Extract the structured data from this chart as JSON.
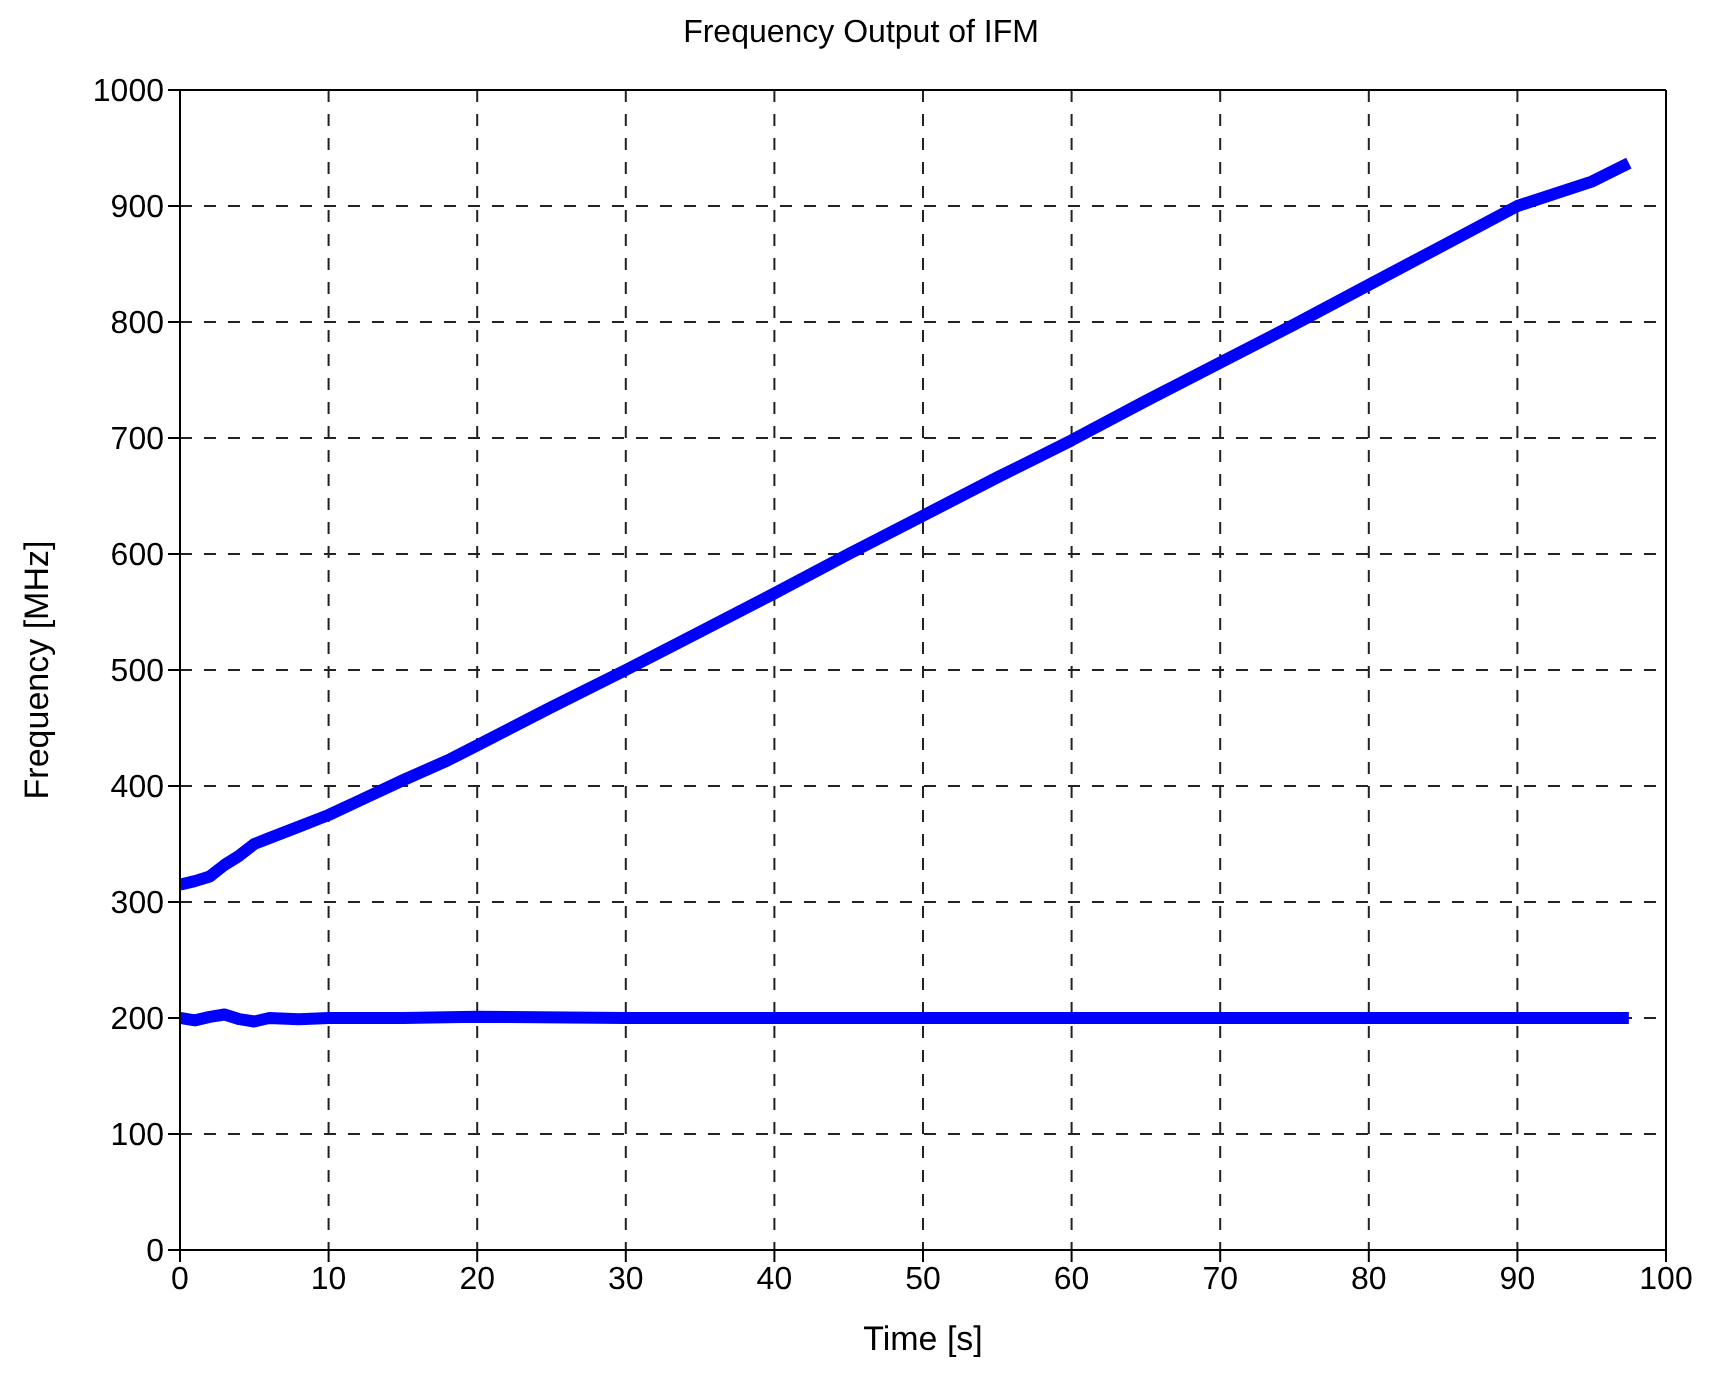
{
  "chart_data": {
    "type": "line",
    "title": "Frequency Output of IFM",
    "xlabel": "Time [s]",
    "ylabel": "Frequency [MHz]",
    "xlim": [
      0,
      100
    ],
    "ylim": [
      0,
      1000
    ],
    "xticks": [
      0,
      10,
      20,
      30,
      40,
      50,
      60,
      70,
      80,
      90,
      100
    ],
    "yticks": [
      0,
      100,
      200,
      300,
      400,
      500,
      600,
      700,
      800,
      900,
      1000
    ],
    "grid": true,
    "line_style": "solid",
    "series": [
      {
        "color": "#0000ff",
        "x": [
          0,
          1,
          2,
          3,
          4,
          5,
          6,
          8,
          10,
          12,
          15,
          18,
          20,
          25,
          30,
          35,
          40,
          45,
          50,
          55,
          60,
          65,
          70,
          75,
          80,
          85,
          90,
          95,
          97.5
        ],
        "values": [
          315,
          318,
          322,
          332,
          340,
          350,
          355,
          365,
          375,
          387,
          405,
          422,
          435,
          468,
          500,
          533,
          566,
          600,
          633,
          666,
          698,
          732,
          765,
          798,
          832,
          866,
          900,
          921,
          937
        ]
      },
      {
        "color": "#0000ff",
        "x": [
          0,
          1,
          2,
          3,
          4,
          5,
          6,
          8,
          10,
          15,
          20,
          30,
          40,
          50,
          60,
          70,
          80,
          90,
          97.5
        ],
        "values": [
          200,
          198,
          201,
          203,
          199,
          197,
          200,
          199,
          200,
          200,
          201,
          200,
          200,
          200,
          200,
          200,
          200,
          200,
          200
        ]
      }
    ]
  }
}
